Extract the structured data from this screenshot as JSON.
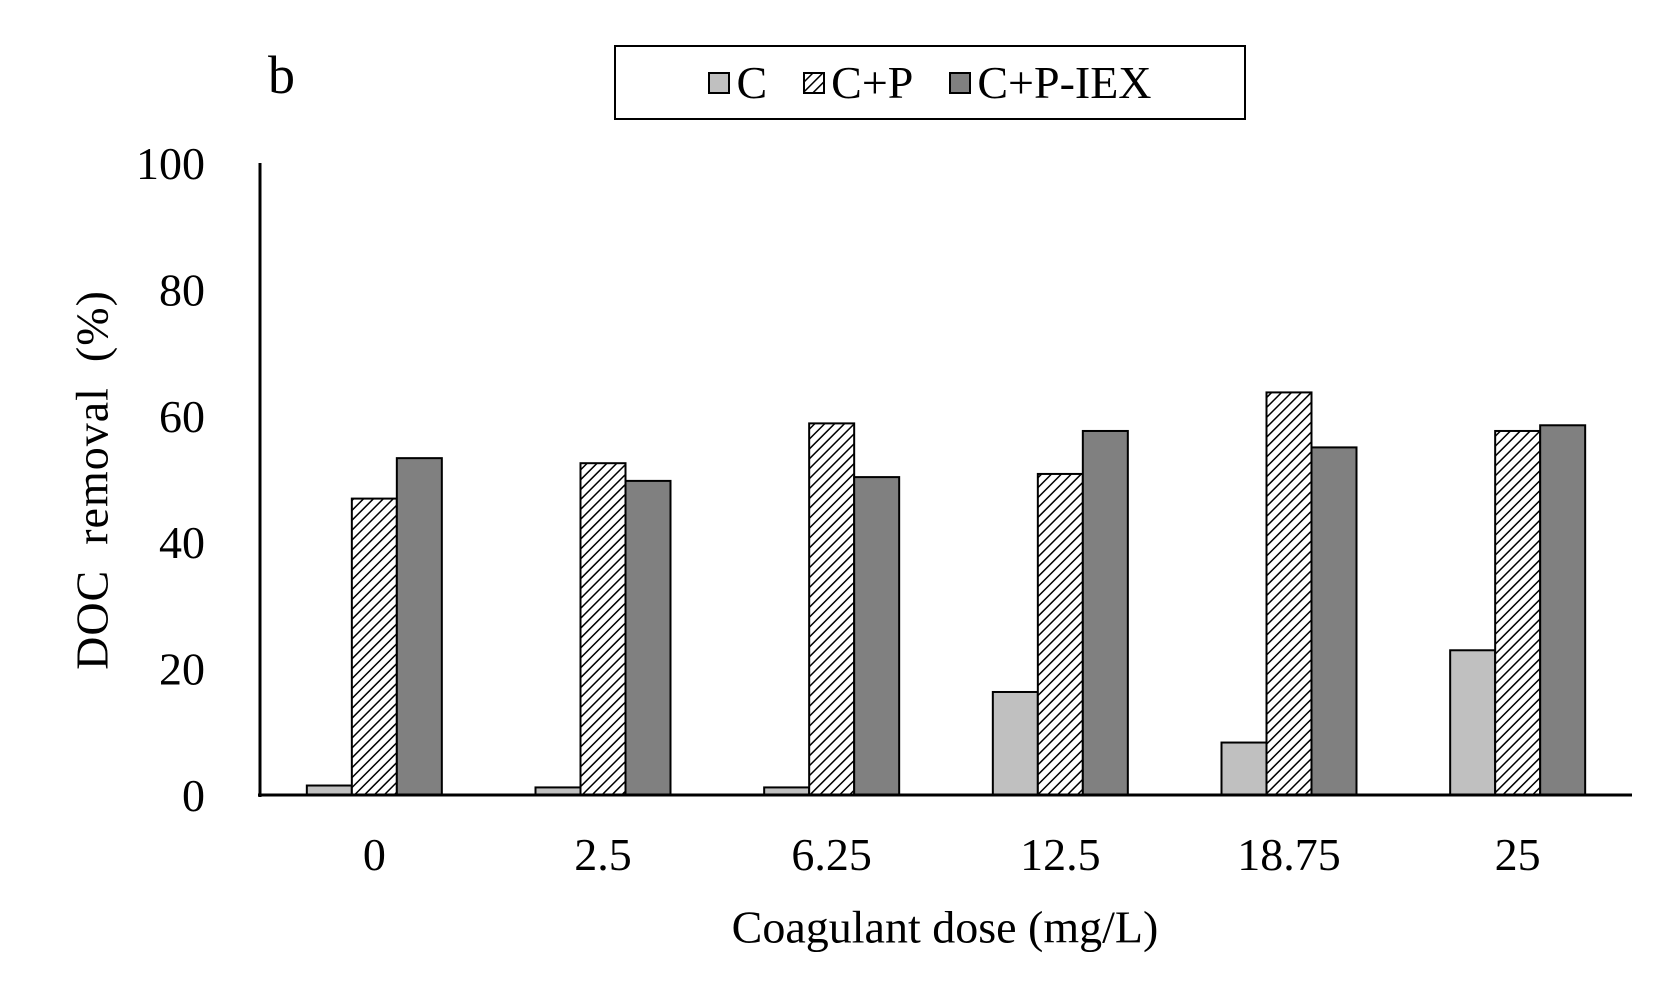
{
  "chart_data": {
    "type": "bar",
    "panel_label": "b",
    "xlabel": "Coagulant dose (mg/L)",
    "ylabel": "DOC  removal  (%)",
    "categories": [
      "0",
      "2.5",
      "6.25",
      "12.5",
      "18.75",
      "25"
    ],
    "ylim": [
      0,
      100
    ],
    "yticks": [
      0,
      20,
      40,
      60,
      80,
      100
    ],
    "grid": false,
    "legend_position": "top-center",
    "series": [
      {
        "name": "C",
        "color": "#c0c0c0",
        "pattern": "solid",
        "values": [
          1.5,
          1.2,
          1.2,
          16.3,
          8.3,
          22.9
        ]
      },
      {
        "name": "C+P",
        "color": "#ffffff",
        "pattern": "diagonal-hatch",
        "values": [
          46.9,
          52.5,
          58.8,
          50.8,
          63.7,
          57.6
        ]
      },
      {
        "name": "C+P-IEX",
        "color": "#808080",
        "pattern": "solid",
        "values": [
          53.3,
          49.7,
          50.3,
          57.6,
          55.0,
          58.5
        ]
      }
    ]
  }
}
